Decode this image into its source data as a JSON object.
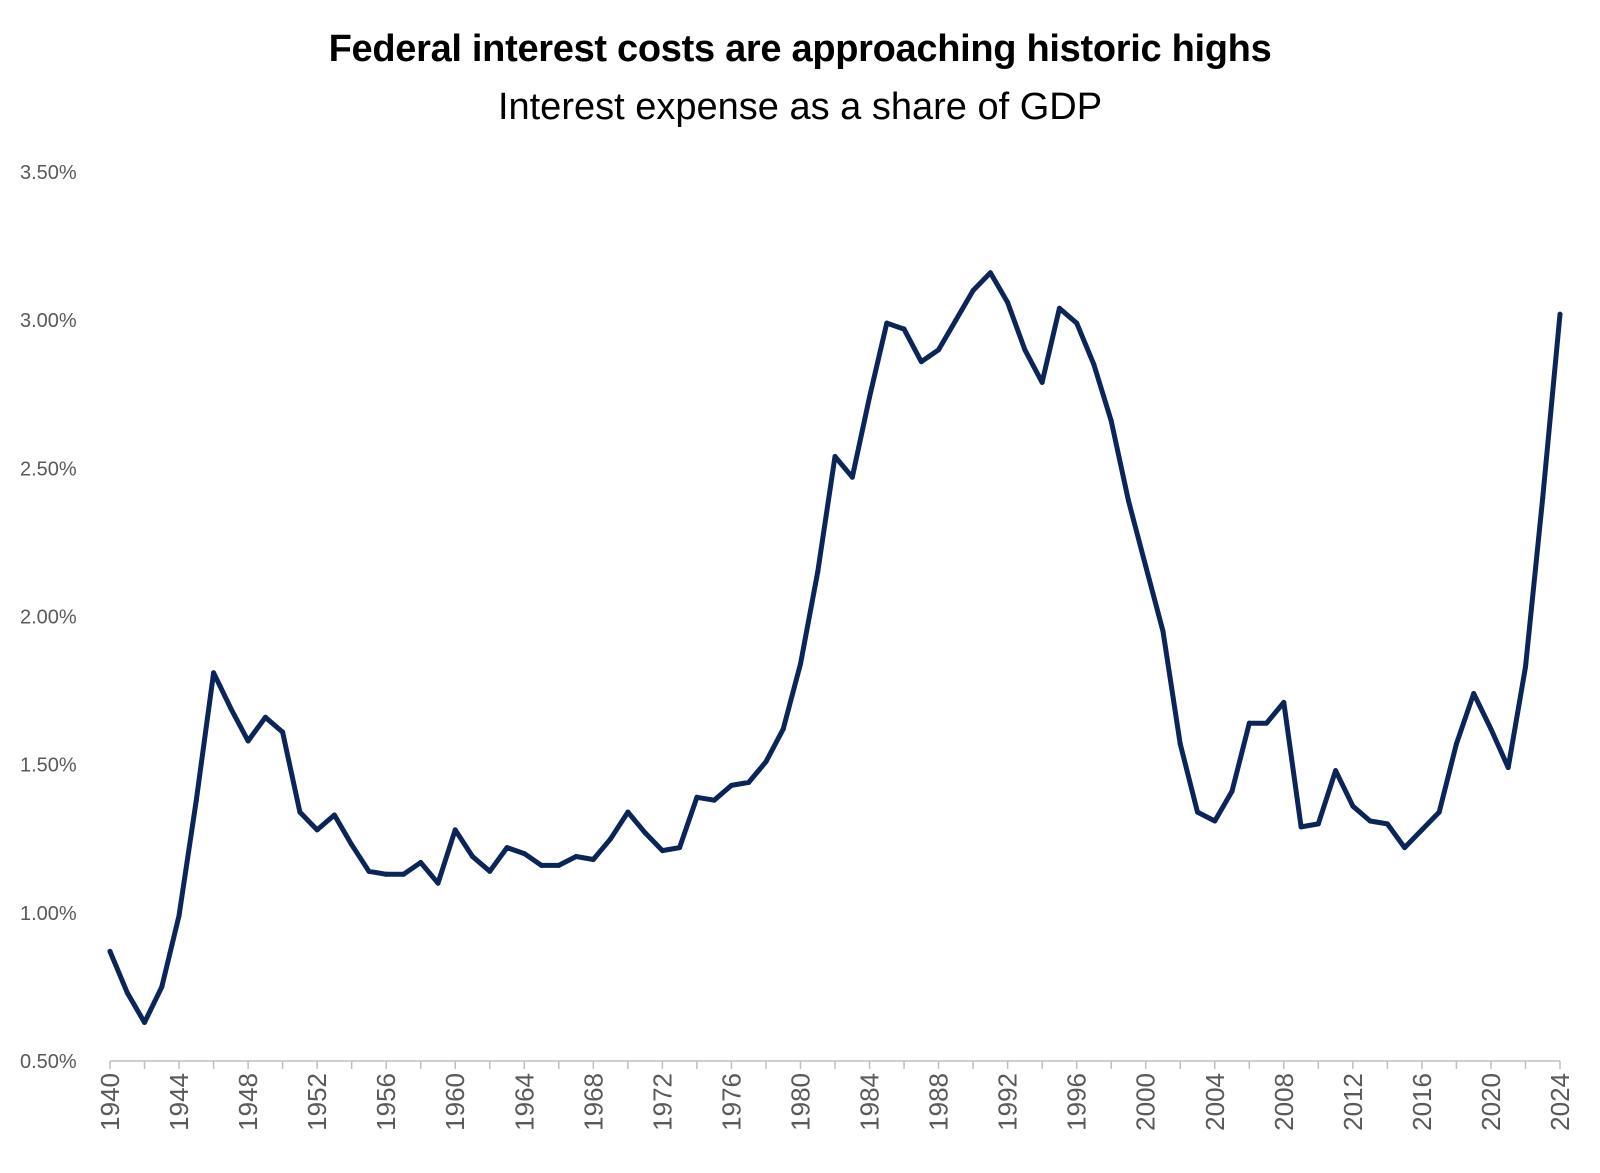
{
  "chart_data": {
    "type": "line",
    "title": "Federal interest costs are approaching historic highs",
    "subtitle": "Interest expense as a share of GDP",
    "xlabel": "",
    "ylabel": "",
    "ylim": [
      0.005,
      0.035
    ],
    "xlim": [
      1940,
      2024
    ],
    "grid": false,
    "line_color": "#0b2559",
    "y_ticks": [
      {
        "value": 0.005,
        "label": "0.50%"
      },
      {
        "value": 0.01,
        "label": "1.00%"
      },
      {
        "value": 0.015,
        "label": "1.50%"
      },
      {
        "value": 0.02,
        "label": "2.00%"
      },
      {
        "value": 0.025,
        "label": "2.50%"
      },
      {
        "value": 0.03,
        "label": "3.00%"
      },
      {
        "value": 0.035,
        "label": "3.50%"
      }
    ],
    "x_ticks": [
      {
        "value": 1940,
        "label": "1940"
      },
      {
        "value": 1944,
        "label": "1944"
      },
      {
        "value": 1948,
        "label": "1948"
      },
      {
        "value": 1952,
        "label": "1952"
      },
      {
        "value": 1956,
        "label": "1956"
      },
      {
        "value": 1960,
        "label": "1960"
      },
      {
        "value": 1964,
        "label": "1964"
      },
      {
        "value": 1968,
        "label": "1968"
      },
      {
        "value": 1972,
        "label": "1972"
      },
      {
        "value": 1976,
        "label": "1976"
      },
      {
        "value": 1980,
        "label": "1980"
      },
      {
        "value": 1984,
        "label": "1984"
      },
      {
        "value": 1988,
        "label": "1988"
      },
      {
        "value": 1992,
        "label": "1992"
      },
      {
        "value": 1996,
        "label": "1996"
      },
      {
        "value": 2000,
        "label": "2000"
      },
      {
        "value": 2004,
        "label": "2004"
      },
      {
        "value": 2008,
        "label": "2008"
      },
      {
        "value": 2012,
        "label": "2012"
      },
      {
        "value": 2016,
        "label": "2016"
      },
      {
        "value": 2020,
        "label": "2020"
      },
      {
        "value": 2024,
        "label": "2024"
      }
    ],
    "series": [
      {
        "name": "Interest expense as a share of GDP",
        "x": [
          1940,
          1941,
          1942,
          1943,
          1944,
          1945,
          1946,
          1947,
          1948,
          1949,
          1950,
          1951,
          1952,
          1953,
          1954,
          1955,
          1956,
          1957,
          1958,
          1959,
          1960,
          1961,
          1962,
          1963,
          1964,
          1965,
          1966,
          1967,
          1968,
          1969,
          1970,
          1971,
          1972,
          1973,
          1974,
          1975,
          1976,
          1977,
          1978,
          1979,
          1980,
          1981,
          1982,
          1983,
          1984,
          1985,
          1986,
          1987,
          1988,
          1989,
          1990,
          1991,
          1992,
          1993,
          1994,
          1995,
          1996,
          1997,
          1998,
          1999,
          2000,
          2001,
          2002,
          2003,
          2004,
          2005,
          2006,
          2007,
          2008,
          2009,
          2010,
          2011,
          2012,
          2013,
          2014,
          2015,
          2016,
          2017,
          2018,
          2019,
          2020,
          2021,
          2022,
          2023,
          2024
        ],
        "values": [
          0.0087,
          0.0073,
          0.0063,
          0.0075,
          0.0099,
          0.0138,
          0.0181,
          0.0169,
          0.0158,
          0.0166,
          0.0161,
          0.0134,
          0.0128,
          0.0133,
          0.0123,
          0.0114,
          0.0113,
          0.0113,
          0.0117,
          0.011,
          0.0128,
          0.0119,
          0.0114,
          0.0122,
          0.012,
          0.0116,
          0.0116,
          0.0119,
          0.0118,
          0.0125,
          0.0134,
          0.0127,
          0.0121,
          0.0122,
          0.0139,
          0.0138,
          0.0143,
          0.0144,
          0.0151,
          0.0162,
          0.0184,
          0.0215,
          0.0254,
          0.0247,
          0.0274,
          0.0299,
          0.0297,
          0.0286,
          0.029,
          0.03,
          0.031,
          0.0316,
          0.0306,
          0.029,
          0.0279,
          0.0304,
          0.0299,
          0.0285,
          0.0266,
          0.0239,
          0.0217,
          0.0195,
          0.0157,
          0.0134,
          0.0131,
          0.0141,
          0.0164,
          0.0164,
          0.0171,
          0.0129,
          0.013,
          0.0148,
          0.0136,
          0.0131,
          0.013,
          0.0122,
          0.0128,
          0.0134,
          0.0157,
          0.0174,
          0.0162,
          0.0149,
          0.0183,
          0.024,
          0.0302
        ]
      }
    ]
  }
}
